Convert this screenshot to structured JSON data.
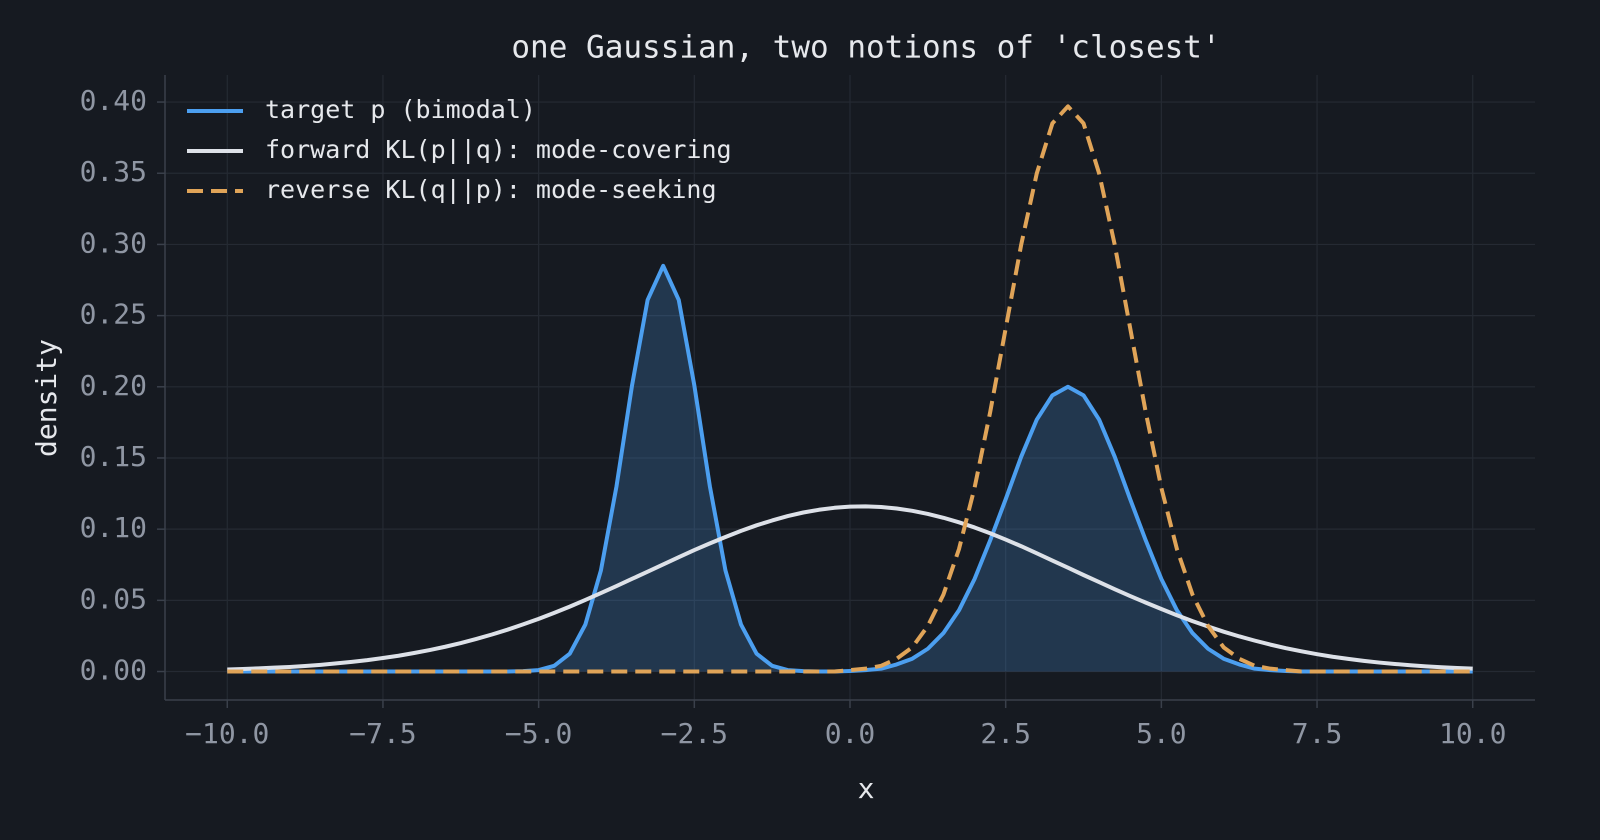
{
  "chart_data": {
    "type": "line",
    "title": "one Gaussian, two notions of 'closest'",
    "x_label": "x",
    "y_label": "density",
    "x": [
      -10,
      -9.75,
      -9.5,
      -9.25,
      -9,
      -8.75,
      -8.5,
      -8.25,
      -8,
      -7.75,
      -7.5,
      -7.25,
      -7,
      -6.75,
      -6.5,
      -6.25,
      -6,
      -5.75,
      -5.5,
      -5.25,
      -5,
      -4.75,
      -4.5,
      -4.25,
      -4,
      -3.75,
      -3.5,
      -3.25,
      -3,
      -2.75,
      -2.5,
      -2.25,
      -2,
      -1.75,
      -1.5,
      -1.25,
      -1,
      -0.75,
      -0.5,
      -0.25,
      0,
      0.25,
      0.5,
      0.75,
      1,
      1.25,
      1.5,
      1.75,
      2,
      2.25,
      2.5,
      2.75,
      3,
      3.25,
      3.5,
      3.75,
      4,
      4.25,
      4.5,
      4.75,
      5,
      5.25,
      5.5,
      5.75,
      6,
      6.25,
      6.5,
      6.75,
      7,
      7.25,
      7.5,
      7.75,
      8,
      8.25,
      8.5,
      8.75,
      9,
      9.25,
      9.5,
      9.75,
      10
    ],
    "series": [
      {
        "name": "target p (bimodal)",
        "color": "#4c9ff0",
        "dash": false,
        "fill": true,
        "values": [
          0,
          0,
          0,
          0,
          0,
          0,
          0,
          0,
          0,
          0,
          0,
          0,
          0,
          0,
          0,
          0,
          0,
          0,
          0,
          0.0003,
          0.001,
          0.004,
          0.0125,
          0.033,
          0.071,
          0.13,
          0.201,
          0.261,
          0.285,
          0.261,
          0.201,
          0.13,
          0.071,
          0.033,
          0.0125,
          0.004,
          0.001,
          0.0003,
          0,
          0,
          0.0004,
          0.001,
          0.002,
          0.005,
          0.009,
          0.016,
          0.027,
          0.043,
          0.065,
          0.092,
          0.121,
          0.151,
          0.177,
          0.194,
          0.2,
          0.194,
          0.177,
          0.151,
          0.121,
          0.092,
          0.065,
          0.043,
          0.027,
          0.016,
          0.009,
          0.005,
          0.002,
          0.001,
          0.0004,
          0,
          0,
          0,
          0,
          0,
          0,
          0,
          0,
          0,
          0,
          0,
          0
        ]
      },
      {
        "name": "forward KL(p||q): mode-covering",
        "color": "#dde1e8",
        "dash": false,
        "fill": false,
        "values": [
          0.0014,
          0.0018,
          0.0022,
          0.0027,
          0.0032,
          0.0039,
          0.0047,
          0.0057,
          0.0068,
          0.008,
          0.0095,
          0.0111,
          0.013,
          0.0151,
          0.0174,
          0.02,
          0.0229,
          0.026,
          0.0294,
          0.0331,
          0.037,
          0.0412,
          0.0456,
          0.0503,
          0.0551,
          0.06,
          0.0651,
          0.0701,
          0.0752,
          0.0803,
          0.0853,
          0.09,
          0.0945,
          0.0988,
          0.1027,
          0.1061,
          0.1092,
          0.1117,
          0.1136,
          0.115,
          0.1158,
          0.116,
          0.1156,
          0.1145,
          0.1129,
          0.1107,
          0.108,
          0.1048,
          0.1012,
          0.0971,
          0.0927,
          0.088,
          0.083,
          0.0779,
          0.0729,
          0.0678,
          0.0628,
          0.0578,
          0.053,
          0.0484,
          0.0439,
          0.0395,
          0.0354,
          0.0316,
          0.028,
          0.0247,
          0.0217,
          0.0189,
          0.0164,
          0.0142,
          0.0122,
          0.0104,
          0.0089,
          0.0075,
          0.0063,
          0.0053,
          0.0044,
          0.0036,
          0.003,
          0.0025,
          0.002
        ]
      },
      {
        "name": "reverse KL(q||p): mode-seeking",
        "color": "#e0a458",
        "dash": true,
        "fill": false,
        "values": [
          0,
          0,
          0,
          0,
          0,
          0,
          0,
          0,
          0,
          0,
          0,
          0,
          0,
          0,
          0,
          0,
          0,
          0,
          0,
          0,
          0,
          0,
          0,
          0,
          0,
          0,
          0,
          0,
          0,
          0,
          0,
          0,
          0,
          0,
          0,
          0,
          0,
          0,
          0,
          0,
          0.001,
          0.002,
          0.004,
          0.009,
          0.017,
          0.032,
          0.054,
          0.086,
          0.129,
          0.182,
          0.241,
          0.3,
          0.35,
          0.385,
          0.397,
          0.385,
          0.35,
          0.3,
          0.241,
          0.182,
          0.129,
          0.086,
          0.054,
          0.032,
          0.017,
          0.009,
          0.004,
          0.002,
          0.001,
          0,
          0,
          0,
          0,
          0,
          0,
          0,
          0,
          0,
          0,
          0,
          0
        ]
      }
    ],
    "xlim": [
      -11,
      11
    ],
    "ylim": [
      -0.02,
      0.419
    ],
    "xticks": [
      {
        "value": -10,
        "label": "−10.0"
      },
      {
        "value": -7.5,
        "label": "−7.5"
      },
      {
        "value": -5,
        "label": "−5.0"
      },
      {
        "value": -2.5,
        "label": "−2.5"
      },
      {
        "value": 0,
        "label": "0.0"
      },
      {
        "value": 2.5,
        "label": "2.5"
      },
      {
        "value": 5,
        "label": "5.0"
      },
      {
        "value": 7.5,
        "label": "7.5"
      },
      {
        "value": 10,
        "label": "10.0"
      }
    ],
    "yticks": [
      {
        "value": 0,
        "label": "0.00"
      },
      {
        "value": 0.05,
        "label": "0.05"
      },
      {
        "value": 0.1,
        "label": "0.10"
      },
      {
        "value": 0.15,
        "label": "0.15"
      },
      {
        "value": 0.2,
        "label": "0.20"
      },
      {
        "value": 0.25,
        "label": "0.25"
      },
      {
        "value": 0.3,
        "label": "0.30"
      },
      {
        "value": 0.35,
        "label": "0.35"
      },
      {
        "value": 0.4,
        "label": "0.40"
      }
    ],
    "grid": true,
    "legend": "upper left"
  }
}
